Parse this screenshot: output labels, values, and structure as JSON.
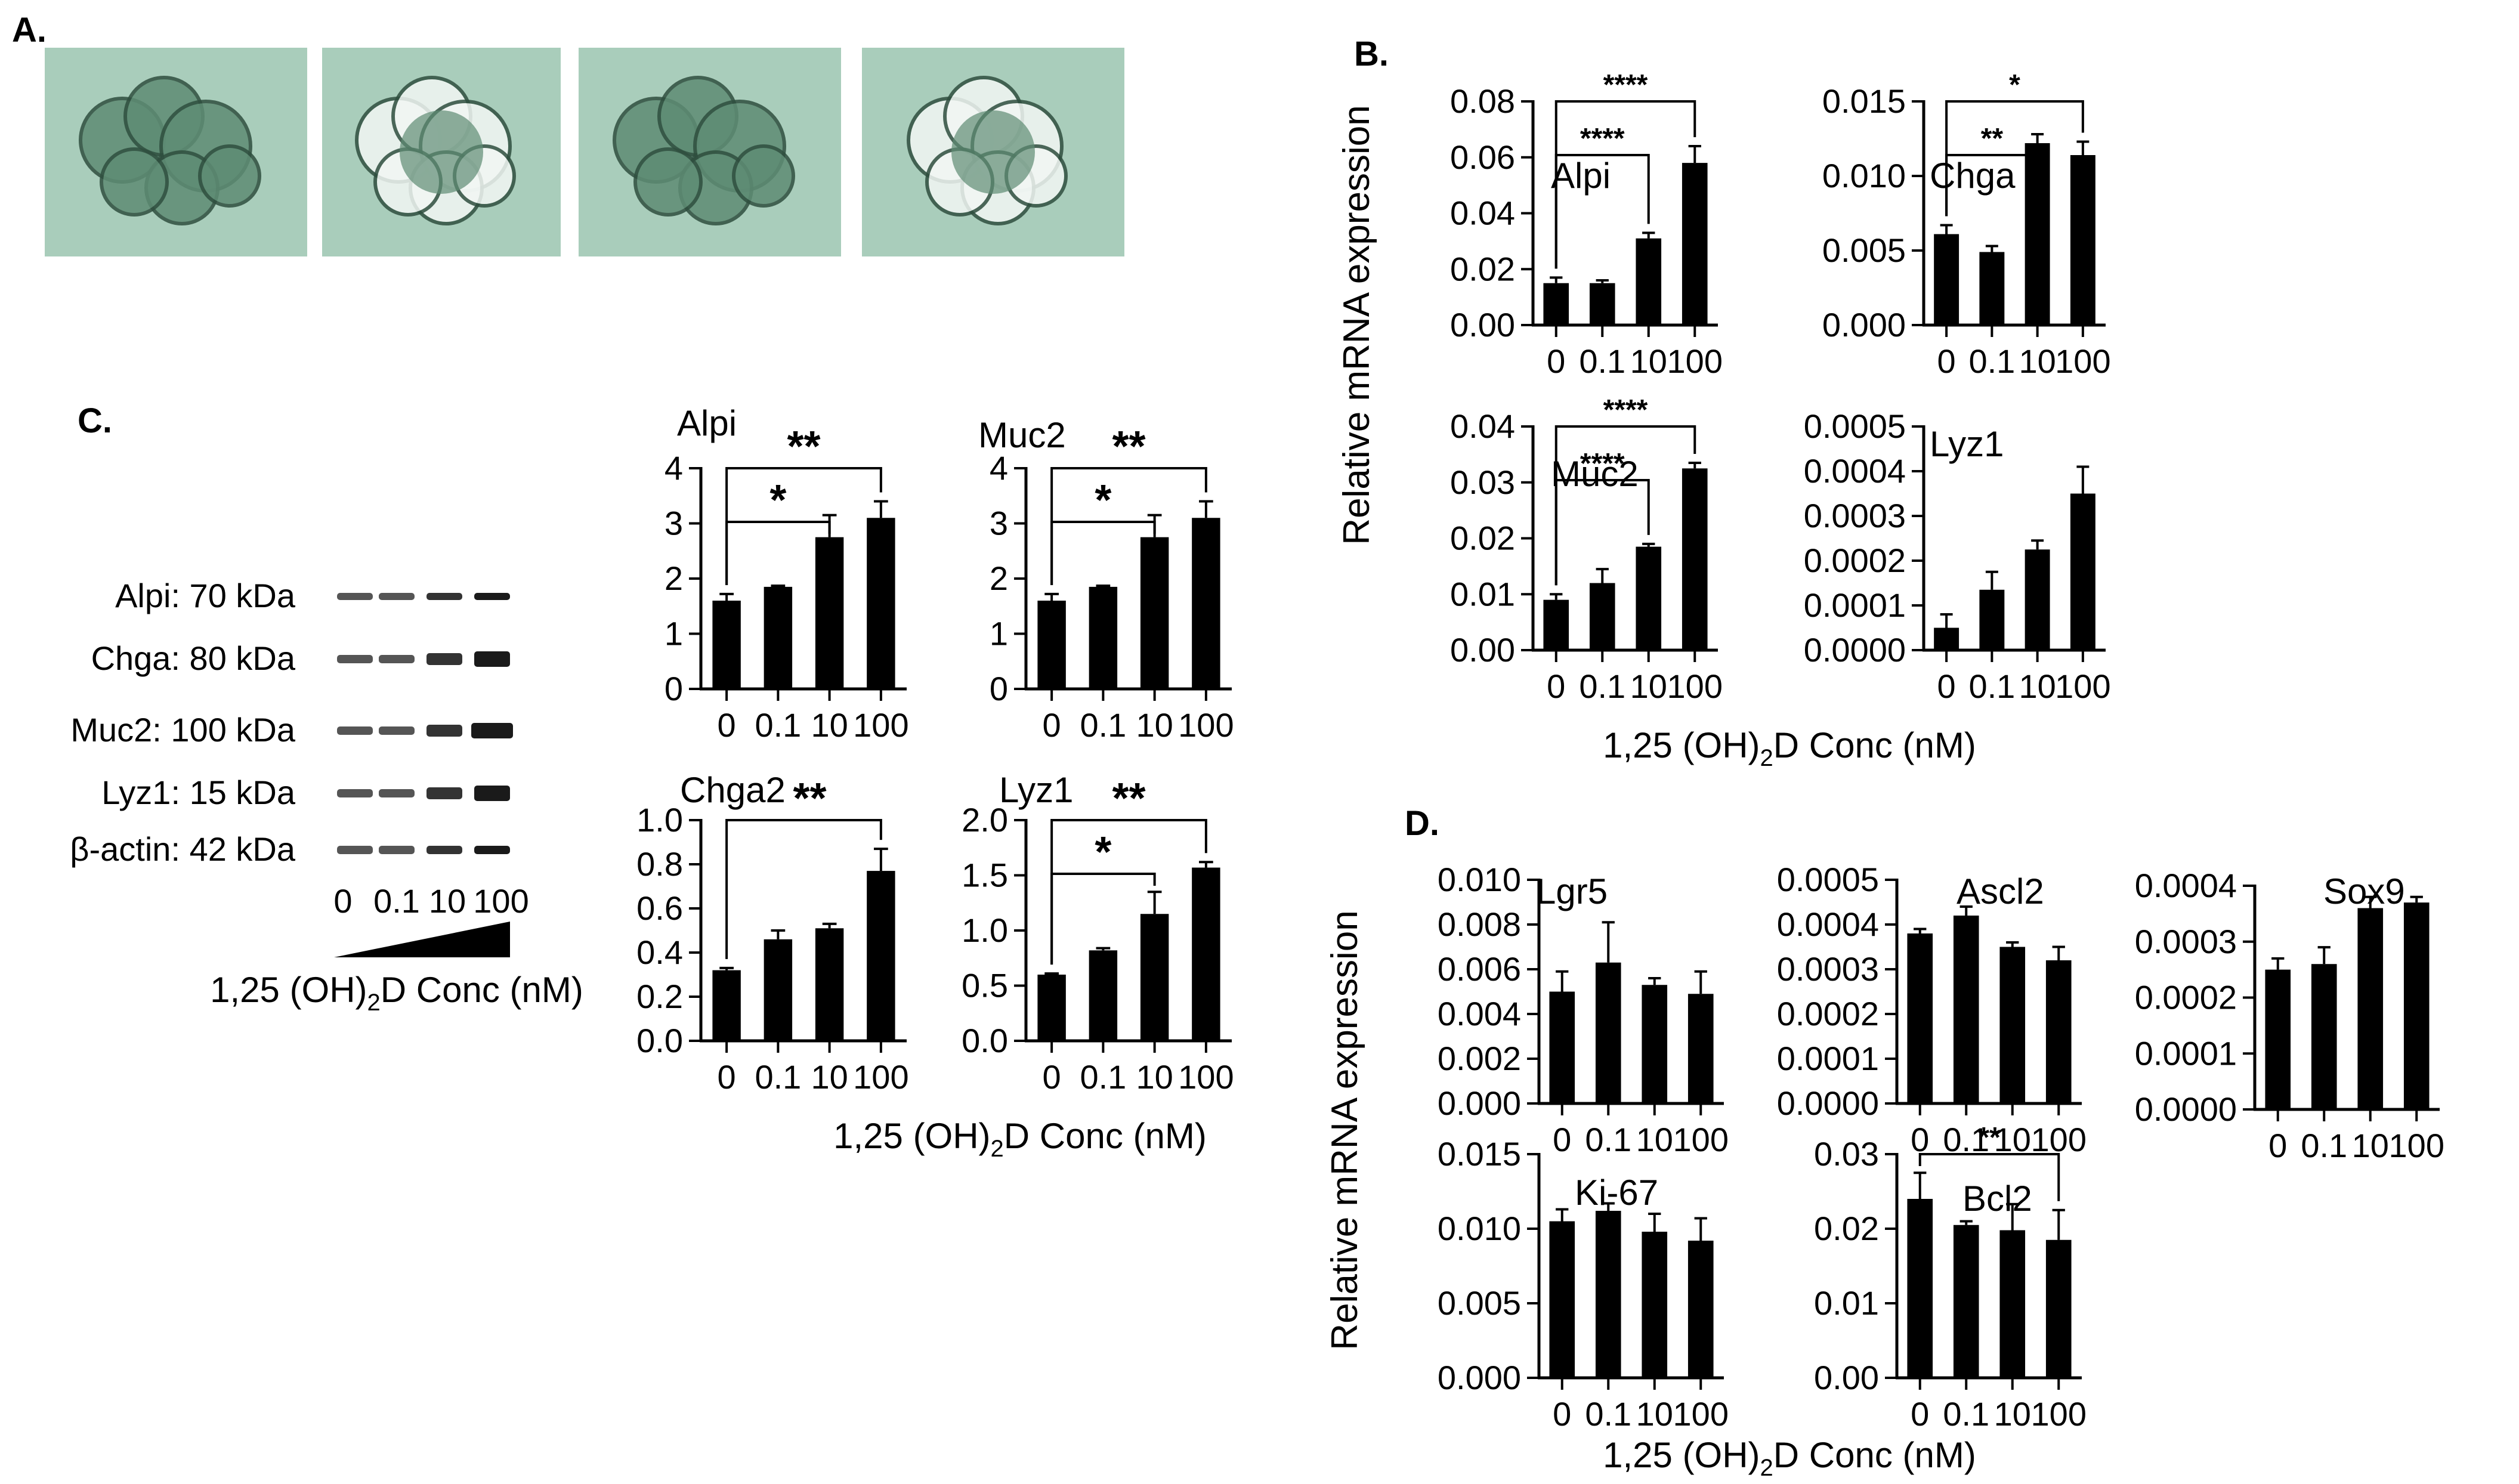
{
  "panels": {
    "A": {
      "label": "A."
    },
    "B": {
      "label": "B."
    },
    "C": {
      "label": "C."
    },
    "D": {
      "label": "D."
    }
  },
  "ylabel": "Relative mRNA expression",
  "xlabel_prefix": "1,25 (OH)",
  "xlabel_sub": "2",
  "xlabel_suffix": "D Conc (nM)",
  "blot": {
    "labels": [
      "Alpi: 70 kDa",
      "Chga: 80 kDa",
      "Muc2: 100 kDa",
      "Lyz1: 15 kDa",
      "β-actin: 42 kDa"
    ],
    "lanes": [
      "0",
      "0.1",
      "10",
      "100"
    ],
    "band_colors": [
      "#1a1a1a",
      "#333333",
      "#555555"
    ]
  },
  "colors": {
    "bar": "#000000",
    "photo_bg": "#a9cdbb",
    "photo_cell": "#5e8c74",
    "photo_light": "#f2f7f4"
  },
  "chart_data": [
    {
      "id": "B-Alpi",
      "type": "bar",
      "title": "Alpi",
      "categories": [
        "0",
        "0.1",
        "10",
        "100"
      ],
      "values": [
        0.015,
        0.015,
        0.031,
        0.058
      ],
      "errors": [
        0.002,
        0.001,
        0.002,
        0.006
      ],
      "ylim": [
        0,
        0.08
      ],
      "yticks": [
        "0.00",
        "0.02",
        "0.04",
        "0.06",
        "0.08"
      ],
      "significance": [
        {
          "from": 0,
          "to": 3,
          "label": "****"
        },
        {
          "from": 0,
          "to": 2,
          "label": "****"
        }
      ]
    },
    {
      "id": "B-Chga",
      "type": "bar",
      "title": "Chga",
      "categories": [
        "0",
        "0.1",
        "10",
        "100"
      ],
      "values": [
        0.0061,
        0.0049,
        0.0122,
        0.0114
      ],
      "errors": [
        0.0006,
        0.0004,
        0.0006,
        0.0009
      ],
      "ylim": [
        0,
        0.015
      ],
      "yticks": [
        "0.000",
        "0.005",
        "0.010",
        "0.015"
      ],
      "significance": [
        {
          "from": 0,
          "to": 3,
          "label": "*"
        },
        {
          "from": 0,
          "to": 2,
          "label": "**"
        }
      ]
    },
    {
      "id": "B-Muc2",
      "type": "bar",
      "title": "Muc2",
      "categories": [
        "0",
        "0.1",
        "10",
        "100"
      ],
      "values": [
        0.009,
        0.012,
        0.0185,
        0.0325
      ],
      "errors": [
        0.001,
        0.0025,
        0.0005,
        0.001
      ],
      "ylim": [
        0,
        0.04
      ],
      "yticks": [
        "0.00",
        "0.01",
        "0.02",
        "0.03",
        "0.04"
      ],
      "significance": [
        {
          "from": 0,
          "to": 3,
          "label": "****"
        },
        {
          "from": 0,
          "to": 2,
          "label": "****"
        }
      ]
    },
    {
      "id": "B-Lyz1",
      "type": "bar",
      "title": "Lyz1",
      "categories": [
        "0",
        "0.1",
        "10",
        "100"
      ],
      "values": [
        5e-05,
        0.000135,
        0.000225,
        0.00035
      ],
      "errors": [
        3e-05,
        4e-05,
        2e-05,
        6e-05
      ],
      "ylim": [
        0,
        0.0005
      ],
      "yticks": [
        "0.0000",
        "0.0001",
        "0.0002",
        "0.0003",
        "0.0004",
        "0.0005"
      ],
      "significance": []
    },
    {
      "id": "C-Alpi",
      "type": "bar",
      "title": "Alpi",
      "categories": [
        "0",
        "0.1",
        "10",
        "100"
      ],
      "values": [
        1.6,
        1.85,
        2.75,
        3.1
      ],
      "errors": [
        0.12,
        0.02,
        0.4,
        0.3
      ],
      "ylim": [
        0,
        4
      ],
      "yticks": [
        "0",
        "1",
        "2",
        "3",
        "4"
      ],
      "significance": [
        {
          "from": 0,
          "to": 3,
          "label": "**"
        },
        {
          "from": 0,
          "to": 2,
          "label": "*"
        }
      ]
    },
    {
      "id": "C-Muc2",
      "type": "bar",
      "title": "Muc2",
      "categories": [
        "0",
        "0.1",
        "10",
        "100"
      ],
      "values": [
        1.6,
        1.85,
        2.75,
        3.1
      ],
      "errors": [
        0.12,
        0.02,
        0.4,
        0.3
      ],
      "ylim": [
        0,
        4
      ],
      "yticks": [
        "0",
        "1",
        "2",
        "3",
        "4"
      ],
      "significance": [
        {
          "from": 0,
          "to": 3,
          "label": "**"
        },
        {
          "from": 0,
          "to": 2,
          "label": "*"
        }
      ]
    },
    {
      "id": "C-Chga2",
      "type": "bar",
      "title": "Chga2",
      "categories": [
        "0",
        "0.1",
        "10",
        "100"
      ],
      "values": [
        0.32,
        0.46,
        0.51,
        0.77
      ],
      "errors": [
        0.01,
        0.04,
        0.02,
        0.1
      ],
      "ylim": [
        0,
        1.0
      ],
      "yticks": [
        "0.0",
        "0.2",
        "0.4",
        "0.6",
        "0.8",
        "1.0"
      ],
      "significance": [
        {
          "from": 0,
          "to": 3,
          "label": "**"
        }
      ]
    },
    {
      "id": "C-Lyz1",
      "type": "bar",
      "title": "Lyz1",
      "categories": [
        "0",
        "0.1",
        "10",
        "100"
      ],
      "values": [
        0.6,
        0.82,
        1.15,
        1.57
      ],
      "errors": [
        0.01,
        0.02,
        0.2,
        0.05
      ],
      "ylim": [
        0,
        2.0
      ],
      "yticks": [
        "0.0",
        "0.5",
        "1.0",
        "1.5",
        "2.0"
      ],
      "significance": [
        {
          "from": 0,
          "to": 3,
          "label": "**"
        },
        {
          "from": 0,
          "to": 2,
          "label": "*"
        }
      ]
    },
    {
      "id": "D-Lgr5",
      "type": "bar",
      "title": "Lgr5",
      "categories": [
        "0",
        "0.1",
        "10",
        "100"
      ],
      "values": [
        0.005,
        0.0063,
        0.0053,
        0.0049
      ],
      "errors": [
        0.0009,
        0.0018,
        0.0003,
        0.001
      ],
      "ylim": [
        0,
        0.01
      ],
      "yticks": [
        "0.000",
        "0.002",
        "0.004",
        "0.006",
        "0.008",
        "0.010"
      ],
      "significance": []
    },
    {
      "id": "D-Ascl2",
      "type": "bar",
      "title": "Ascl2",
      "categories": [
        "0",
        "0.1",
        "10",
        "100"
      ],
      "values": [
        0.00038,
        0.00042,
        0.00035,
        0.00032
      ],
      "errors": [
        1e-05,
        2e-05,
        1e-05,
        3e-05
      ],
      "ylim": [
        0,
        0.0005
      ],
      "yticks": [
        "0.0000",
        "0.0001",
        "0.0002",
        "0.0003",
        "0.0004",
        "0.0005"
      ],
      "significance": []
    },
    {
      "id": "D-Sox9",
      "type": "bar",
      "title": "Sox9",
      "categories": [
        "0",
        "0.1",
        "10",
        "100"
      ],
      "values": [
        0.00025,
        0.00026,
        0.00036,
        0.00037
      ],
      "errors": [
        2e-05,
        3e-05,
        2e-05,
        1e-05
      ],
      "ylim": [
        0,
        0.0004
      ],
      "yticks": [
        "0.0000",
        "0.0001",
        "0.0002",
        "0.0003",
        "0.0004"
      ],
      "significance": []
    },
    {
      "id": "D-Ki67",
      "type": "bar",
      "title": "Ki-67",
      "categories": [
        "0",
        "0.1",
        "10",
        "100"
      ],
      "values": [
        0.0105,
        0.0112,
        0.0098,
        0.0092
      ],
      "errors": [
        0.0008,
        0.0005,
        0.0012,
        0.0015
      ],
      "ylim": [
        0,
        0.015
      ],
      "yticks": [
        "0.000",
        "0.005",
        "0.010",
        "0.015"
      ],
      "significance": []
    },
    {
      "id": "D-Bcl2",
      "type": "bar",
      "title": "Bcl2",
      "categories": [
        "0",
        "0.1",
        "10",
        "100"
      ],
      "values": [
        0.024,
        0.0205,
        0.0198,
        0.0185
      ],
      "errors": [
        0.0035,
        0.0005,
        0.0035,
        0.004
      ],
      "ylim": [
        0,
        0.03
      ],
      "yticks": [
        "0.00",
        "0.01",
        "0.02",
        "0.03"
      ],
      "significance": [
        {
          "from": 0,
          "to": 3,
          "label": "**"
        }
      ]
    }
  ]
}
